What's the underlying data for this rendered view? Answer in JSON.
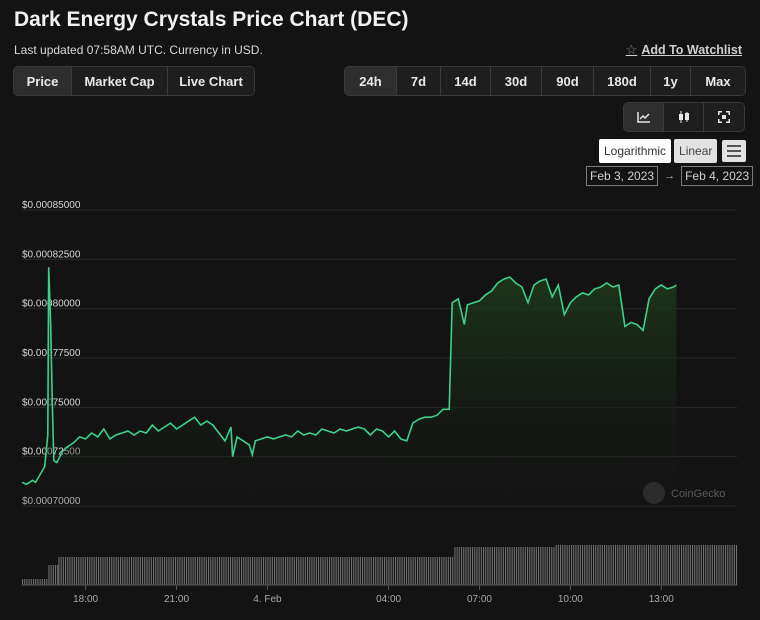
{
  "header": {
    "title": "Dark Energy Crystals Price Chart (DEC)",
    "subtitle": "Last updated 07:58AM UTC. Currency in USD.",
    "watchlist_label": "Add To Watchlist"
  },
  "type_tabs": [
    {
      "label": "Price",
      "active": true
    },
    {
      "label": "Market Cap",
      "active": false
    },
    {
      "label": "Live Chart",
      "active": false
    }
  ],
  "range_tabs": [
    {
      "label": "24h",
      "active": true
    },
    {
      "label": "7d",
      "active": false
    },
    {
      "label": "14d",
      "active": false
    },
    {
      "label": "30d",
      "active": false
    },
    {
      "label": "90d",
      "active": false
    },
    {
      "label": "180d",
      "active": false
    },
    {
      "label": "1y",
      "active": false
    },
    {
      "label": "Max",
      "active": false
    }
  ],
  "view_icons": [
    "line-chart-icon",
    "candlestick-icon",
    "fullscreen-icon"
  ],
  "scale": {
    "logarithmic_label": "Logarithmic",
    "linear_label": "Linear",
    "selected": "Linear"
  },
  "date_range": {
    "from": "Feb 3, 2023",
    "to": "Feb 4, 2023",
    "separator": "→"
  },
  "watermark": "CoinGecko",
  "colors": {
    "line": "#3ed08a",
    "area_top": "#1e3a1c",
    "volume": "#6e6e6e",
    "grid": "#2a2a2a"
  },
  "chart_data": {
    "type": "area",
    "ylim": [
      0.0007,
      0.00085
    ],
    "y_ticks": [
      0.0007,
      0.000725,
      0.00075,
      0.000775,
      0.0008,
      0.000825,
      0.00085
    ],
    "y_tick_labels": [
      "$0.00070000",
      "$0.00072500",
      "$0.00075000",
      "$0.00077500",
      "$0.00080000",
      "$0.00082500",
      "$0.00085000"
    ],
    "x_range_hours": [
      15.9,
      39.5
    ],
    "x_ticks": [
      {
        "label": "18:00",
        "h": 18
      },
      {
        "label": "21:00",
        "h": 21
      },
      {
        "label": "4. Feb",
        "h": 24
      },
      {
        "label": "04:00",
        "h": 28
      },
      {
        "label": "07:00",
        "h": 31
      },
      {
        "label": "10:00",
        "h": 34
      },
      {
        "label": "13:00",
        "h": 37
      }
    ],
    "series": [
      {
        "x_hours": [
          15.9,
          16.05,
          16.25,
          16.35,
          16.5,
          16.65,
          16.75,
          16.78,
          16.85,
          16.9,
          16.95,
          17.05,
          17.25,
          17.4,
          17.6,
          17.8,
          18.0,
          18.2,
          18.4,
          18.6,
          18.8,
          19.0,
          19.2,
          19.4,
          19.6,
          19.8,
          20.0,
          20.2,
          20.4,
          20.6,
          20.8,
          21.0,
          21.2,
          21.4,
          21.6,
          21.8,
          22.0,
          22.2,
          22.4,
          22.6,
          22.8,
          22.85,
          23.0,
          23.2,
          23.4,
          23.5,
          23.6,
          23.8,
          24.0,
          24.2,
          24.4,
          24.6,
          24.8,
          25.0,
          25.2,
          25.4,
          25.6,
          25.8,
          26.0,
          26.2,
          26.4,
          26.6,
          26.8,
          27.0,
          27.2,
          27.4,
          27.6,
          27.8,
          28.0,
          28.2,
          28.4,
          28.6,
          28.8,
          29.0,
          29.2,
          29.4,
          29.6,
          29.8,
          30.0,
          30.1,
          30.3,
          30.5,
          30.6,
          30.8,
          31.0,
          31.2,
          31.4,
          31.6,
          31.8,
          32.0,
          32.2,
          32.4,
          32.6,
          32.8,
          33.0,
          33.2,
          33.4,
          33.6,
          33.8,
          34.0,
          34.2,
          34.4,
          34.6,
          34.8,
          35.0,
          35.2,
          35.4,
          35.6,
          35.8,
          36.0,
          36.2,
          36.4,
          36.6,
          36.8,
          37.0,
          37.2,
          37.4,
          37.5
        ],
        "values": [
          0.000712,
          0.000711,
          0.000713,
          0.000712,
          0.000716,
          0.00072,
          0.000736,
          0.000821,
          0.00079,
          0.000752,
          0.000723,
          0.000722,
          0.000728,
          0.00073,
          0.000732,
          0.000735,
          0.000734,
          0.000737,
          0.000735,
          0.000739,
          0.000734,
          0.000736,
          0.000737,
          0.000738,
          0.000736,
          0.000738,
          0.000737,
          0.000741,
          0.000738,
          0.00074,
          0.000742,
          0.000739,
          0.000741,
          0.000743,
          0.000745,
          0.000741,
          0.000743,
          0.000741,
          0.000737,
          0.000733,
          0.00074,
          0.000725,
          0.000735,
          0.000733,
          0.000731,
          0.000726,
          0.000733,
          0.000734,
          0.000735,
          0.000734,
          0.000735,
          0.000736,
          0.000735,
          0.000738,
          0.000736,
          0.000737,
          0.000736,
          0.000739,
          0.000738,
          0.000737,
          0.000739,
          0.000738,
          0.000739,
          0.00074,
          0.000739,
          0.000736,
          0.000739,
          0.000738,
          0.000735,
          0.000738,
          0.000734,
          0.000733,
          0.000742,
          0.000744,
          0.000745,
          0.000745,
          0.000746,
          0.000749,
          0.000749,
          0.000803,
          0.000805,
          0.000792,
          0.000802,
          0.000803,
          0.000804,
          0.000807,
          0.000809,
          0.000813,
          0.000815,
          0.000816,
          0.000813,
          0.000811,
          0.000803,
          0.000812,
          0.000814,
          0.000815,
          0.000806,
          0.000812,
          0.000797,
          0.000803,
          0.000806,
          0.000808,
          0.000807,
          0.00081,
          0.000811,
          0.000813,
          0.000811,
          0.000812,
          0.000791,
          0.000793,
          0.000792,
          0.000789,
          0.000805,
          0.00081,
          0.000812,
          0.00081,
          0.000811,
          0.000812
        ]
      }
    ]
  }
}
